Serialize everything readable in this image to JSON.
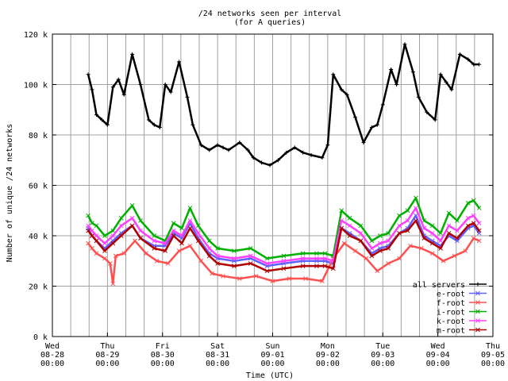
{
  "chart_data": {
    "type": "line",
    "title": "/24 networks seen per interval",
    "subtitle": "(for A queries)",
    "xlabel": "Time (UTC)",
    "ylabel": "Number of unique /24 networks",
    "ylim": [
      0,
      120000
    ],
    "y_ticks": [
      {
        "v": 0,
        "label": "0 k"
      },
      {
        "v": 20000,
        "label": "20 k"
      },
      {
        "v": 40000,
        "label": "40 k"
      },
      {
        "v": 60000,
        "label": "60 k"
      },
      {
        "v": 80000,
        "label": "80 k"
      },
      {
        "v": 100000,
        "label": "100 k"
      },
      {
        "v": 120000,
        "label": "120 k"
      }
    ],
    "x_range_days": [
      0,
      8
    ],
    "x_ticks": [
      {
        "d": 0,
        "l1": "Wed",
        "l2": "08-28",
        "l3": "00:00"
      },
      {
        "d": 1,
        "l1": "Thu",
        "l2": "08-29",
        "l3": "00:00"
      },
      {
        "d": 2,
        "l1": "Fri",
        "l2": "08-30",
        "l3": "00:00"
      },
      {
        "d": 3,
        "l1": "Sat",
        "l2": "08-31",
        "l3": "00:00"
      },
      {
        "d": 4,
        "l1": "Sun",
        "l2": "09-01",
        "l3": "00:00"
      },
      {
        "d": 5,
        "l1": "Mon",
        "l2": "09-02",
        "l3": "00:00"
      },
      {
        "d": 6,
        "l1": "Tue",
        "l2": "09-03",
        "l3": "00:00"
      },
      {
        "d": 7,
        "l1": "Wed",
        "l2": "09-04",
        "l3": "00:00"
      },
      {
        "d": 8,
        "l1": "Thu",
        "l2": "09-05",
        "l3": "00:00"
      }
    ],
    "grid": true,
    "legend_position": "bottom-right",
    "series": [
      {
        "name": "all servers",
        "color": "#000000",
        "marker": "plus",
        "x": [
          0.65,
          0.72,
          0.8,
          0.9,
          1.0,
          1.1,
          1.2,
          1.3,
          1.45,
          1.6,
          1.75,
          1.85,
          1.95,
          2.05,
          2.15,
          2.3,
          2.45,
          2.55,
          2.7,
          2.85,
          3.0,
          3.1,
          3.2,
          3.4,
          3.55,
          3.65,
          3.8,
          3.95,
          4.1,
          4.25,
          4.4,
          4.55,
          4.7,
          4.9,
          5.0,
          5.1,
          5.25,
          5.35,
          5.5,
          5.65,
          5.8,
          5.9,
          6.0,
          6.15,
          6.25,
          6.4,
          6.55,
          6.65,
          6.8,
          6.95,
          7.05,
          7.15,
          7.25,
          7.4,
          7.55,
          7.65,
          7.75
        ],
        "y": [
          104000,
          98000,
          88000,
          86000,
          84000,
          99000,
          102000,
          96000,
          112000,
          100000,
          86000,
          84000,
          83000,
          100000,
          97000,
          109000,
          95000,
          84000,
          76000,
          74000,
          76000,
          75000,
          74000,
          77000,
          74000,
          71000,
          69000,
          68000,
          70000,
          73000,
          75000,
          73000,
          72000,
          71000,
          76000,
          104000,
          98000,
          96000,
          87000,
          77000,
          83000,
          84000,
          92000,
          106000,
          100000,
          116000,
          105000,
          95000,
          89000,
          86000,
          104000,
          101000,
          98000,
          112000,
          110000,
          108000,
          108000
        ]
      },
      {
        "name": "e-root",
        "color": "#6060ff",
        "marker": "x",
        "x": [
          0.65,
          0.72,
          0.8,
          0.95,
          1.1,
          1.25,
          1.45,
          1.6,
          1.85,
          2.05,
          2.2,
          2.35,
          2.5,
          2.65,
          2.85,
          3.0,
          3.3,
          3.6,
          3.9,
          4.2,
          4.55,
          4.8,
          4.95,
          5.1,
          5.25,
          5.4,
          5.6,
          5.8,
          5.95,
          6.1,
          6.3,
          6.45,
          6.6,
          6.75,
          6.9,
          7.05,
          7.2,
          7.35,
          7.55,
          7.65,
          7.75
        ],
        "y": [
          43000,
          40000,
          38000,
          35000,
          38000,
          41000,
          44000,
          39000,
          36000,
          36000,
          41000,
          39000,
          45000,
          39000,
          33000,
          31000,
          30000,
          31000,
          28000,
          29000,
          30000,
          30000,
          30000,
          29000,
          43000,
          41000,
          38000,
          33000,
          35000,
          36000,
          41000,
          43000,
          48000,
          40000,
          38000,
          36000,
          40000,
          38000,
          43000,
          44000,
          41000
        ]
      },
      {
        "name": "f-root",
        "color": "#ff5050",
        "marker": "x",
        "x": [
          0.65,
          0.72,
          0.8,
          0.95,
          1.05,
          1.1,
          1.15,
          1.3,
          1.5,
          1.7,
          1.9,
          2.1,
          2.3,
          2.5,
          2.7,
          2.9,
          3.1,
          3.4,
          3.7,
          4.0,
          4.3,
          4.6,
          4.9,
          5.1,
          5.3,
          5.5,
          5.7,
          5.9,
          6.1,
          6.3,
          6.5,
          6.7,
          6.9,
          7.1,
          7.3,
          7.5,
          7.65,
          7.75
        ],
        "y": [
          37000,
          35000,
          33000,
          31000,
          29000,
          21000,
          32000,
          33000,
          38000,
          33000,
          30000,
          29000,
          34000,
          36000,
          30000,
          25000,
          24000,
          23000,
          24000,
          22000,
          23000,
          23000,
          22000,
          31000,
          37000,
          34000,
          31000,
          26000,
          29000,
          31000,
          36000,
          35000,
          33000,
          30000,
          32000,
          34000,
          39000,
          38000
        ]
      },
      {
        "name": "i-root",
        "color": "#00b000",
        "marker": "x",
        "x": [
          0.65,
          0.72,
          0.8,
          0.95,
          1.1,
          1.25,
          1.45,
          1.6,
          1.85,
          2.05,
          2.2,
          2.35,
          2.5,
          2.65,
          2.85,
          3.0,
          3.3,
          3.6,
          3.9,
          4.2,
          4.55,
          4.8,
          4.95,
          5.1,
          5.25,
          5.4,
          5.6,
          5.8,
          5.95,
          6.1,
          6.3,
          6.45,
          6.6,
          6.75,
          6.9,
          7.05,
          7.2,
          7.35,
          7.55,
          7.65,
          7.75
        ],
        "y": [
          48000,
          45000,
          44000,
          40000,
          42000,
          47000,
          52000,
          46000,
          40000,
          38000,
          45000,
          43000,
          51000,
          44000,
          38000,
          35000,
          34000,
          35000,
          31000,
          32000,
          33000,
          33000,
          33000,
          32000,
          50000,
          47000,
          44000,
          38000,
          40000,
          41000,
          48000,
          50000,
          55000,
          46000,
          44000,
          41000,
          49000,
          46000,
          53000,
          54000,
          51000
        ]
      },
      {
        "name": "k-root",
        "color": "#ff40ff",
        "marker": "x",
        "x": [
          0.65,
          0.72,
          0.8,
          0.95,
          1.1,
          1.25,
          1.45,
          1.6,
          1.85,
          2.05,
          2.2,
          2.35,
          2.5,
          2.65,
          2.85,
          3.0,
          3.3,
          3.6,
          3.9,
          4.2,
          4.55,
          4.8,
          4.95,
          5.1,
          5.25,
          5.4,
          5.6,
          5.8,
          5.95,
          6.1,
          6.3,
          6.45,
          6.6,
          6.75,
          6.9,
          7.05,
          7.2,
          7.35,
          7.55,
          7.65,
          7.75
        ],
        "y": [
          44000,
          42000,
          40000,
          37000,
          40000,
          44000,
          47000,
          42000,
          38000,
          37000,
          42000,
          40000,
          46000,
          41000,
          35000,
          32000,
          31000,
          32000,
          29000,
          30000,
          31000,
          31000,
          31000,
          30000,
          46000,
          44000,
          41000,
          35000,
          37000,
          38000,
          44000,
          46000,
          51000,
          43000,
          41000,
          38000,
          44000,
          42000,
          47000,
          48000,
          45000
        ]
      },
      {
        "name": "m-root",
        "color": "#b00000",
        "marker": "x",
        "x": [
          0.65,
          0.72,
          0.8,
          0.95,
          1.1,
          1.25,
          1.45,
          1.6,
          1.85,
          2.05,
          2.2,
          2.35,
          2.5,
          2.65,
          2.85,
          3.0,
          3.3,
          3.6,
          3.9,
          4.2,
          4.55,
          4.8,
          4.95,
          5.1,
          5.25,
          5.4,
          5.6,
          5.8,
          5.95,
          6.1,
          6.3,
          6.45,
          6.6,
          6.75,
          6.9,
          7.05,
          7.2,
          7.35,
          7.55,
          7.65,
          7.75
        ],
        "y": [
          42000,
          40000,
          38000,
          34000,
          37000,
          40000,
          44000,
          39000,
          35000,
          34000,
          40000,
          37000,
          43000,
          38000,
          32000,
          29000,
          28000,
          29000,
          26000,
          27000,
          28000,
          28000,
          28000,
          27000,
          43000,
          40000,
          38000,
          32000,
          34000,
          35000,
          41000,
          42000,
          46000,
          39000,
          37000,
          35000,
          41000,
          39000,
          44000,
          45000,
          42000
        ]
      }
    ]
  }
}
